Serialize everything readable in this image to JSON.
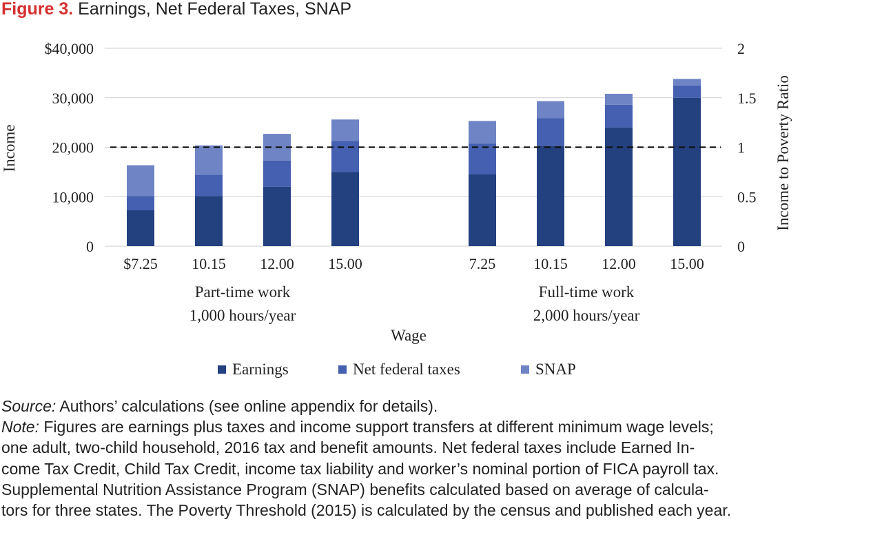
{
  "figure": {
    "label": "Figure 3.",
    "title": "Earnings, Net Federal Taxes, SNAP"
  },
  "chart_data": {
    "type": "bar",
    "stacked": true,
    "title": "Earnings, Net Federal Taxes, SNAP",
    "xlabel": "Wage",
    "ylabel": "Income",
    "y2label": "Income to Poverty Ratio",
    "ylim": [
      0,
      40000
    ],
    "y2lim": [
      0,
      2
    ],
    "yticks": [
      "0",
      "10,000",
      "20,000",
      "30,000",
      "$40,000"
    ],
    "y2ticks": [
      "0",
      "0.5",
      "1",
      "1.5",
      "2"
    ],
    "grid": true,
    "legend_position": "bottom",
    "groups": [
      {
        "label": "Part-time work",
        "sublabel": "1,000 hours/year"
      },
      {
        "label": "Full-time work",
        "sublabel": "2,000 hours/year"
      }
    ],
    "categories": [
      "$7.25",
      "10.15",
      "12.00",
      "15.00",
      "7.25",
      "10.15",
      "12.00",
      "15.00"
    ],
    "category_groups": [
      0,
      0,
      0,
      0,
      1,
      1,
      1,
      1
    ],
    "series": [
      {
        "name": "Earnings",
        "color": "#23407f",
        "values": [
          7250,
          10150,
          12000,
          15000,
          14500,
          20300,
          24000,
          30000
        ]
      },
      {
        "name": "Net federal taxes",
        "color": "#4560b0",
        "values": [
          2900,
          4300,
          5300,
          6300,
          6200,
          5600,
          4600,
          2400
        ]
      },
      {
        "name": "SNAP",
        "color": "#6f84c4",
        "values": [
          6200,
          5900,
          5400,
          4300,
          4600,
          3400,
          2200,
          1400
        ]
      }
    ],
    "poverty_line": {
      "y2_value": 1,
      "style": "dashed"
    }
  },
  "notes": {
    "source_label": "Source:",
    "source_text": " Authors’ calculations (see online appendix for details).",
    "note_label": "Note:",
    "note_line1": " Figures are earnings plus taxes and income support transfers at different minimum wage levels;",
    "note_line2": "one adult, two-child household, 2016 tax and benefit amounts. Net federal taxes include Earned In-",
    "note_line3": "come Tax Credit, Child Tax Credit, income tax liability and worker’s nominal portion of FICA payroll tax.",
    "note_line4": "Supplemental Nutrition Assistance Program (SNAP) benefits calculated based on average of calcula-",
    "note_line5": "tors for three states. The Poverty Threshold (2015) is calculated by the census and published each year."
  }
}
